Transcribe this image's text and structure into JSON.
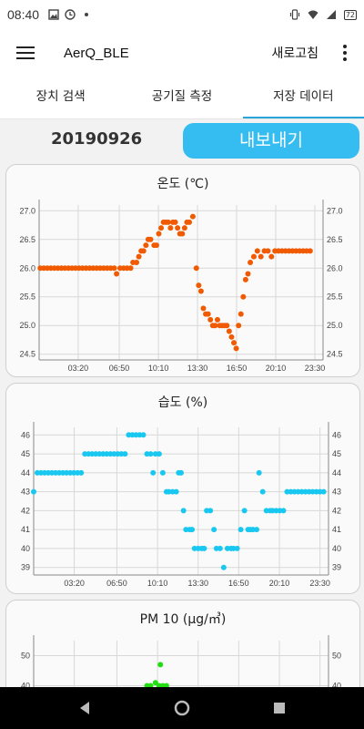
{
  "status_bar": {
    "time": "08:40",
    "left_icons": [
      "image-icon",
      "clock-badge-icon",
      "dot-icon"
    ],
    "right_icons": [
      "vibrate-icon",
      "wifi-icon",
      "signal-icon"
    ],
    "battery": "72"
  },
  "app_bar": {
    "title": "AerQ_BLE",
    "refresh_label": "새로고침"
  },
  "tabs": [
    {
      "label": "장치 검색",
      "active": false
    },
    {
      "label": "공기질 측정",
      "active": false
    },
    {
      "label": "저장 데이터",
      "active": true
    }
  ],
  "date": "20190926",
  "export_label": "내보내기",
  "colors": {
    "accent": "#35bdf2",
    "tab_indicator": "#28a6d9",
    "temperature": "#f05a00",
    "humidity": "#19c8f0",
    "pm10": "#22dd11"
  },
  "chart_data": [
    {
      "type": "scatter",
      "title": "온도 (℃)",
      "x_tick_labels": [
        "03:20",
        "06:50",
        "10:10",
        "13:30",
        "16:50",
        "20:10",
        "23:30"
      ],
      "y_tick_labels": [
        "24.5",
        "25.0",
        "25.5",
        "26.0",
        "26.5",
        "27.0"
      ],
      "ylim": [
        24.4,
        27.1
      ],
      "xlim": [
        0,
        24.2
      ],
      "grid": true,
      "series": [
        {
          "color": "#f05a00",
          "points": [
            [
              0.1,
              26.0
            ],
            [
              0.4,
              26.0
            ],
            [
              0.7,
              26.0
            ],
            [
              1.0,
              26.0
            ],
            [
              1.3,
              26.0
            ],
            [
              1.6,
              26.0
            ],
            [
              1.9,
              26.0
            ],
            [
              2.2,
              26.0
            ],
            [
              2.5,
              26.0
            ],
            [
              2.8,
              26.0
            ],
            [
              3.1,
              26.0
            ],
            [
              3.4,
              26.0
            ],
            [
              3.7,
              26.0
            ],
            [
              4.0,
              26.0
            ],
            [
              4.3,
              26.0
            ],
            [
              4.6,
              26.0
            ],
            [
              4.9,
              26.0
            ],
            [
              5.2,
              26.0
            ],
            [
              5.5,
              26.0
            ],
            [
              5.8,
              26.0
            ],
            [
              6.1,
              26.0
            ],
            [
              6.4,
              26.0
            ],
            [
              6.6,
              25.9
            ],
            [
              6.9,
              26.0
            ],
            [
              7.2,
              26.0
            ],
            [
              7.5,
              26.0
            ],
            [
              7.8,
              26.0
            ],
            [
              8.0,
              26.1
            ],
            [
              8.3,
              26.1
            ],
            [
              8.5,
              26.2
            ],
            [
              8.7,
              26.3
            ],
            [
              8.9,
              26.3
            ],
            [
              9.1,
              26.4
            ],
            [
              9.3,
              26.5
            ],
            [
              9.5,
              26.5
            ],
            [
              9.8,
              26.4
            ],
            [
              10.0,
              26.4
            ],
            [
              10.2,
              26.6
            ],
            [
              10.4,
              26.7
            ],
            [
              10.6,
              26.8
            ],
            [
              10.8,
              26.8
            ],
            [
              11.0,
              26.8
            ],
            [
              11.2,
              26.7
            ],
            [
              11.4,
              26.8
            ],
            [
              11.6,
              26.8
            ],
            [
              11.8,
              26.7
            ],
            [
              12.0,
              26.6
            ],
            [
              12.2,
              26.6
            ],
            [
              12.4,
              26.7
            ],
            [
              12.6,
              26.8
            ],
            [
              12.8,
              26.8
            ],
            [
              13.1,
              26.9
            ],
            [
              13.4,
              26.0
            ],
            [
              13.6,
              25.7
            ],
            [
              13.8,
              25.6
            ],
            [
              14.0,
              25.3
            ],
            [
              14.2,
              25.2
            ],
            [
              14.4,
              25.2
            ],
            [
              14.6,
              25.1
            ],
            [
              14.8,
              25.0
            ],
            [
              15.0,
              25.0
            ],
            [
              15.2,
              25.1
            ],
            [
              15.4,
              25.0
            ],
            [
              15.6,
              25.0
            ],
            [
              15.8,
              25.0
            ],
            [
              16.0,
              25.0
            ],
            [
              16.2,
              24.9
            ],
            [
              16.4,
              24.8
            ],
            [
              16.6,
              24.7
            ],
            [
              16.8,
              24.6
            ],
            [
              17.0,
              25.0
            ],
            [
              17.2,
              25.2
            ],
            [
              17.4,
              25.5
            ],
            [
              17.6,
              25.8
            ],
            [
              17.8,
              25.9
            ],
            [
              18.0,
              26.1
            ],
            [
              18.3,
              26.2
            ],
            [
              18.6,
              26.3
            ],
            [
              18.9,
              26.2
            ],
            [
              19.2,
              26.3
            ],
            [
              19.5,
              26.3
            ],
            [
              19.8,
              26.2
            ],
            [
              20.1,
              26.3
            ],
            [
              20.4,
              26.3
            ],
            [
              20.7,
              26.3
            ],
            [
              21.0,
              26.3
            ],
            [
              21.3,
              26.3
            ],
            [
              21.6,
              26.3
            ],
            [
              21.9,
              26.3
            ],
            [
              22.2,
              26.3
            ],
            [
              22.5,
              26.3
            ],
            [
              22.8,
              26.3
            ],
            [
              23.1,
              26.3
            ]
          ]
        }
      ]
    },
    {
      "type": "scatter",
      "title": "습도 (%)",
      "x_tick_labels": [
        "03:20",
        "06:50",
        "10:10",
        "13:30",
        "16:50",
        "20:10",
        "23:30"
      ],
      "y_tick_labels": [
        "39",
        "40",
        "41",
        "42",
        "43",
        "44",
        "45",
        "46"
      ],
      "ylim": [
        38.6,
        46.4
      ],
      "xlim": [
        0,
        24.2
      ],
      "grid": true,
      "series": [
        {
          "color": "#19c8f0",
          "points": [
            [
              0.0,
              43
            ],
            [
              0.3,
              44
            ],
            [
              0.6,
              44
            ],
            [
              0.9,
              44
            ],
            [
              1.2,
              44
            ],
            [
              1.5,
              44
            ],
            [
              1.8,
              44
            ],
            [
              2.1,
              44
            ],
            [
              2.4,
              44
            ],
            [
              2.7,
              44
            ],
            [
              3.0,
              44
            ],
            [
              3.3,
              44
            ],
            [
              3.6,
              44
            ],
            [
              3.9,
              44
            ],
            [
              4.2,
              45
            ],
            [
              4.5,
              45
            ],
            [
              4.8,
              45
            ],
            [
              5.1,
              45
            ],
            [
              5.4,
              45
            ],
            [
              5.7,
              45
            ],
            [
              6.0,
              45
            ],
            [
              6.3,
              45
            ],
            [
              6.6,
              45
            ],
            [
              6.9,
              45
            ],
            [
              7.2,
              45
            ],
            [
              7.5,
              45
            ],
            [
              7.8,
              46
            ],
            [
              8.1,
              46
            ],
            [
              8.4,
              46
            ],
            [
              8.7,
              46
            ],
            [
              9.0,
              46
            ],
            [
              9.3,
              45
            ],
            [
              9.6,
              45
            ],
            [
              9.8,
              44
            ],
            [
              10.0,
              45
            ],
            [
              10.3,
              45
            ],
            [
              10.6,
              44
            ],
            [
              10.9,
              43
            ],
            [
              11.1,
              43
            ],
            [
              11.4,
              43
            ],
            [
              11.7,
              43
            ],
            [
              11.9,
              44
            ],
            [
              12.1,
              44
            ],
            [
              12.3,
              42
            ],
            [
              12.5,
              41
            ],
            [
              12.8,
              41
            ],
            [
              13.0,
              41
            ],
            [
              13.2,
              40
            ],
            [
              13.5,
              40
            ],
            [
              13.8,
              40
            ],
            [
              14.0,
              40
            ],
            [
              14.2,
              42
            ],
            [
              14.5,
              42
            ],
            [
              14.8,
              41
            ],
            [
              15.0,
              40
            ],
            [
              15.3,
              40
            ],
            [
              15.6,
              39
            ],
            [
              15.9,
              40
            ],
            [
              16.2,
              40
            ],
            [
              16.4,
              40
            ],
            [
              16.7,
              40
            ],
            [
              17.0,
              41
            ],
            [
              17.3,
              42
            ],
            [
              17.6,
              41
            ],
            [
              17.8,
              41
            ],
            [
              18.0,
              41
            ],
            [
              18.3,
              41
            ],
            [
              18.5,
              44
            ],
            [
              18.8,
              43
            ],
            [
              19.1,
              42
            ],
            [
              19.4,
              42
            ],
            [
              19.6,
              42
            ],
            [
              19.9,
              42
            ],
            [
              20.2,
              42
            ],
            [
              20.5,
              42
            ],
            [
              20.8,
              43
            ],
            [
              21.1,
              43
            ],
            [
              21.4,
              43
            ],
            [
              21.7,
              43
            ],
            [
              22.0,
              43
            ],
            [
              22.3,
              43
            ],
            [
              22.6,
              43
            ],
            [
              22.9,
              43
            ],
            [
              23.2,
              43
            ],
            [
              23.5,
              43
            ],
            [
              23.8,
              43
            ]
          ]
        }
      ]
    },
    {
      "type": "scatter",
      "title": "PM 10 (μg/㎥)",
      "x_tick_labels": [],
      "y_tick_labels": [
        "40",
        "50"
      ],
      "ylim": [
        35,
        55
      ],
      "xlim": [
        0,
        24.2
      ],
      "grid": true,
      "series": [
        {
          "color": "#22dd11",
          "points": [
            [
              9.3,
              40
            ],
            [
              9.6,
              40
            ],
            [
              10.0,
              41
            ],
            [
              10.3,
              40
            ],
            [
              10.6,
              40
            ],
            [
              10.9,
              40
            ],
            [
              10.4,
              47
            ]
          ]
        }
      ]
    }
  ]
}
